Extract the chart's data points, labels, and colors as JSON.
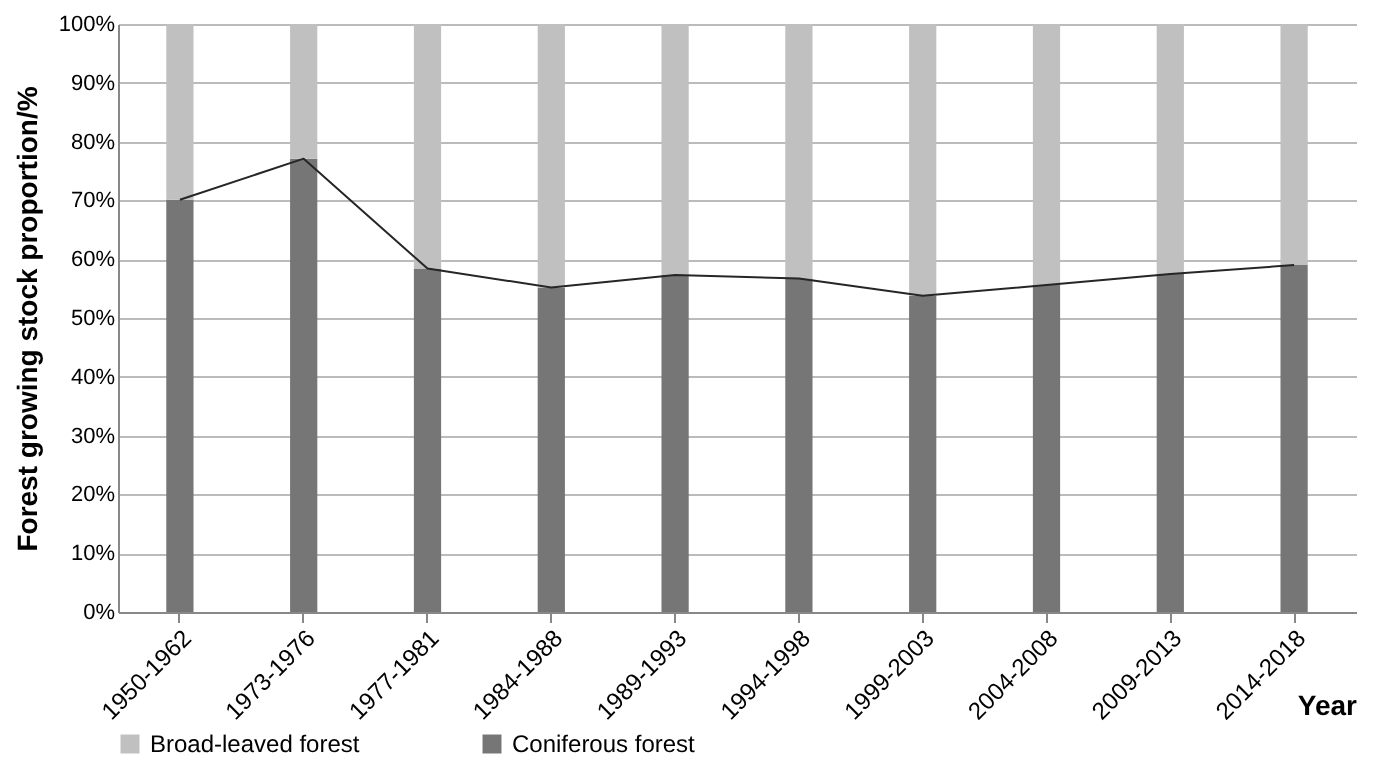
{
  "chart_data": {
    "type": "bar",
    "stacked": true,
    "xlabel": "Year",
    "ylabel": "Forest growing stock proportion/%",
    "categories": [
      "1950-1962",
      "1973-1976",
      "1977-1981",
      "1984-1988",
      "1989-1993",
      "1994-1998",
      "1999-2003",
      "2004-2008",
      "2009-2013",
      "2014-2018"
    ],
    "series": [
      {
        "name": "Coniferous forest",
        "color": "#767676",
        "values": [
          70.1,
          77.1,
          58.4,
          55.2,
          57.3,
          56.7,
          53.8,
          55.6,
          57.5,
          59.0
        ]
      },
      {
        "name": "Broad-leaved forest",
        "color": "#c0c0c0",
        "values": [
          29.9,
          22.9,
          41.6,
          44.8,
          42.7,
          43.3,
          46.2,
          44.4,
          42.5,
          41.0
        ]
      },
      {
        "type": "line",
        "color": "#262626",
        "values": [
          70.1,
          77.1,
          58.4,
          55.2,
          57.3,
          56.7,
          53.8,
          55.6,
          57.5,
          59.0
        ]
      }
    ],
    "ylim": [
      0,
      100
    ],
    "yticks": [
      {
        "value": 0,
        "label": "0%"
      },
      {
        "value": 10,
        "label": "10%"
      },
      {
        "value": 20,
        "label": "20%"
      },
      {
        "value": 30,
        "label": "30%"
      },
      {
        "value": 40,
        "label": "40%"
      },
      {
        "value": 50,
        "label": "50%"
      },
      {
        "value": 60,
        "label": "60%"
      },
      {
        "value": 70,
        "label": "70%"
      },
      {
        "value": 80,
        "label": "80%"
      },
      {
        "value": 90,
        "label": "90%"
      },
      {
        "value": 100,
        "label": "100%"
      }
    ],
    "grid": "y",
    "legend": "bottom"
  }
}
